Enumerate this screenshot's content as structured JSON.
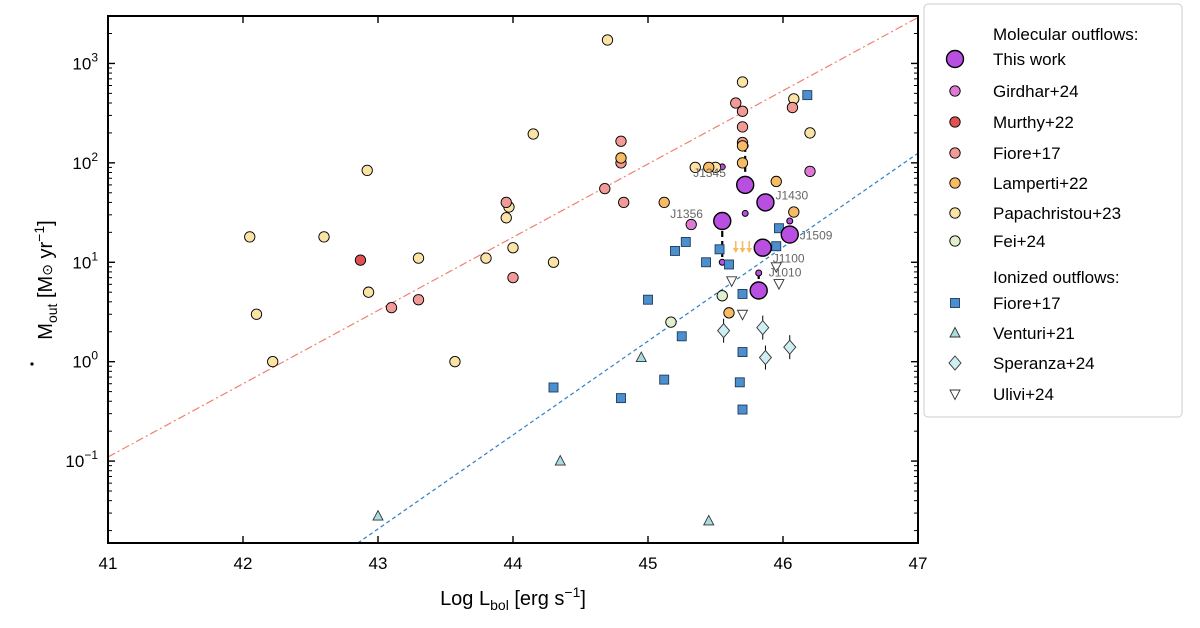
{
  "chart_data": {
    "type": "scatter",
    "xlabel": "Log L",
    "xlabel_sub": "bol",
    "xlabel_unit": " [erg s",
    "xlabel_unit_tail": "]",
    "ylabel": "M",
    "ylabel_sub": "out",
    "ylabel_unit": " [M",
    "ylabel_unit_sun": "⊙",
    "ylabel_unit2": " yr",
    "ylabel_unit_tail": "]",
    "exponent": "−1",
    "xlim": [
      41,
      47
    ],
    "ylim": [
      0.015,
      3000
    ],
    "yscale": "log",
    "x_ticks": [
      "41",
      "42",
      "43",
      "44",
      "45",
      "46",
      "47"
    ],
    "y_ticks": [
      {
        "base": "10",
        "exp": "−1",
        "value": 0.1
      },
      {
        "base": "10",
        "exp": "0",
        "value": 1
      },
      {
        "base": "10",
        "exp": "1",
        "value": 10
      },
      {
        "base": "10",
        "exp": "2",
        "value": 100
      },
      {
        "base": "10",
        "exp": "3",
        "value": 1000
      }
    ],
    "legend_position": "outside-right",
    "lines": [
      {
        "color": "#f08070",
        "style": "dashdot",
        "x": [
          41,
          47
        ],
        "y": [
          0.11,
          2900
        ]
      },
      {
        "color": "#2f7fc1",
        "style": "dashed",
        "x": [
          42.85,
          47
        ],
        "y": [
          0.015,
          125
        ]
      }
    ],
    "legend": {
      "headers": {
        "molecular": "Molecular outflows:",
        "ionized": "Ionized outflows:"
      },
      "entries": [
        {
          "label": "This work",
          "marker": "circle-large",
          "color": "#b84fe0"
        },
        {
          "label": "Girdhar+24",
          "marker": "circle",
          "color": "#dd7ad4"
        },
        {
          "label": "Murthy+22",
          "marker": "circle",
          "color": "#e05252"
        },
        {
          "label": "Fiore+17",
          "marker": "circle",
          "color": "#f29a96"
        },
        {
          "label": "Lamperti+22",
          "marker": "circle",
          "color": "#f7bb63"
        },
        {
          "label": "Papachristou+23",
          "marker": "circle",
          "color": "#fbe3a5"
        },
        {
          "label": "Fei+24",
          "marker": "circle",
          "color": "#e2efcf"
        },
        {
          "label": "Fiore+17",
          "marker": "square",
          "color": "#4b8fcf"
        },
        {
          "label": "Venturi+21",
          "marker": "triangle-up",
          "color": "#a7dde0"
        },
        {
          "label": "Speranza+24",
          "marker": "diamond",
          "color": "#cdeff4"
        },
        {
          "label": "Ulivi+24",
          "marker": "triangle-down",
          "color": "#ffffff"
        }
      ]
    },
    "series": [
      {
        "name": "Papachristou+23",
        "marker": "circle",
        "color": "#fbe3a5",
        "x": [
          42.05,
          42.1,
          42.22,
          42.6,
          42.92,
          42.93,
          43.3,
          43.57,
          43.8,
          43.95,
          43.97,
          44.0,
          44.15,
          44.3,
          44.7,
          45.35,
          45.5,
          45.7,
          46.08,
          46.2
        ],
        "y": [
          18,
          3,
          1,
          18,
          84,
          5,
          11,
          1,
          11,
          28,
          36,
          14,
          195,
          10,
          1720,
          90,
          90,
          650,
          440,
          200
        ]
      },
      {
        "name": "Murthy+22",
        "marker": "circle",
        "color": "#e05252",
        "x": [
          42.87
        ],
        "y": [
          10.5
        ]
      },
      {
        "name": "Fiore+17 (mol)",
        "marker": "circle",
        "color": "#f29a96",
        "x": [
          43.1,
          43.3,
          43.95,
          44.0,
          44.68,
          44.8,
          44.8,
          44.82,
          45.65,
          45.7,
          45.7,
          45.7,
          46.07
        ],
        "y": [
          3.5,
          4.2,
          40,
          7,
          55,
          165,
          100,
          40,
          400,
          330,
          230,
          160,
          360
        ]
      },
      {
        "name": "Lamperti+22",
        "marker": "circle",
        "color": "#f7bb63",
        "x": [
          44.8,
          45.12,
          45.45,
          45.6,
          45.7,
          45.7,
          45.95,
          46.08
        ],
        "y": [
          112,
          40,
          90,
          3.1,
          148,
          100,
          65,
          32
        ]
      },
      {
        "name": "Girdhar+24",
        "marker": "circle",
        "color": "#dd7ad4",
        "x": [
          45.32,
          46.2
        ],
        "y": [
          24,
          82
        ]
      },
      {
        "name": "Fei+24",
        "marker": "circle",
        "color": "#e2efcf",
        "x": [
          45.17,
          45.55
        ],
        "y": [
          2.5,
          4.6
        ]
      },
      {
        "name": "Lamperti+22 upper limits",
        "marker": "arrow-down",
        "color": "#f7bb63",
        "x": [
          45.65,
          45.7,
          45.75,
          45.8
        ],
        "y": [
          16,
          16,
          16,
          15.5
        ]
      },
      {
        "name": "Fiore+17 (ion)",
        "marker": "square",
        "color": "#4b8fcf",
        "x": [
          44.3,
          44.8,
          45.0,
          45.12,
          45.2,
          45.25,
          45.28,
          45.43,
          45.53,
          45.6,
          45.68,
          45.7,
          45.7,
          45.7,
          45.95,
          45.97,
          46.18
        ],
        "y": [
          0.55,
          0.43,
          4.2,
          0.66,
          13,
          1.8,
          16,
          10,
          13.5,
          9.5,
          0.62,
          0.33,
          1.25,
          4.8,
          14.5,
          22,
          480
        ]
      },
      {
        "name": "Venturi+21",
        "marker": "triangle-up",
        "color": "#a7dde0",
        "x": [
          43.0,
          44.35,
          44.95,
          45.45
        ],
        "y": [
          0.028,
          0.1,
          1.1,
          0.025
        ]
      },
      {
        "name": "Speranza+24",
        "marker": "diamond",
        "color": "#cdeff4",
        "x": [
          45.56,
          45.85,
          45.87,
          46.05
        ],
        "y": [
          2.05,
          2.2,
          1.1,
          1.4
        ]
      },
      {
        "name": "Ulivi+24",
        "marker": "triangle-down",
        "color": "#ffffff",
        "x": [
          45.62,
          45.7,
          45.95,
          45.97
        ],
        "y": [
          6.5,
          3,
          9,
          6.1
        ]
      },
      {
        "name": "This work",
        "marker": "circle-large",
        "color": "#b84fe0",
        "x": [
          45.55,
          45.72,
          45.87,
          45.85,
          45.82,
          46.05
        ],
        "y": [
          26,
          60,
          40,
          14,
          5.2,
          19
        ],
        "labels": [
          "J1356",
          "J1345",
          "J1430",
          "J1100",
          "J1010",
          "J1509"
        ]
      }
    ]
  }
}
